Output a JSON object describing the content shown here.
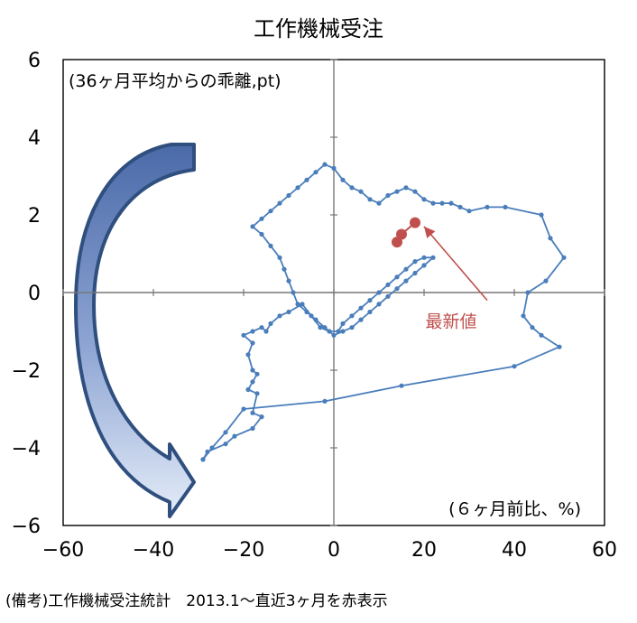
{
  "chart_data": {
    "type": "scatter",
    "title": "工作機械受注",
    "annotation_units": "(36ヶ月平均からの乖離,pt)",
    "annotation_xlabel": "(６ヶ月前比、%)",
    "latest_label": "最新値",
    "xlim": [
      -60,
      60
    ],
    "ylim": [
      -6,
      6
    ],
    "x_ticks": [
      -60,
      -40,
      -20,
      0,
      20,
      40,
      60
    ],
    "y_ticks": [
      6,
      4,
      2,
      0,
      -2,
      -4,
      -6
    ],
    "x_tick_labels": [
      "−60",
      "−40",
      "−20",
      "0",
      "20",
      "40",
      "60"
    ],
    "y_tick_labels": [
      "6",
      "4",
      "2",
      "0",
      "−2",
      "−4",
      "−6"
    ],
    "grid": false,
    "colors": {
      "series": "#4a7ebb",
      "latest": "#c0504d",
      "arrow_fill": "#7a90c0",
      "arrow_stroke": "#2f4f7f"
    },
    "series": [
      {
        "x": [
          -29,
          -28,
          -24,
          -22,
          -18,
          -16,
          -18,
          -17,
          -19,
          -18,
          -17,
          -18,
          -19,
          -18,
          -20,
          -18,
          -16,
          -15,
          -14,
          -12,
          -10,
          -7,
          -5,
          -3,
          -1,
          1,
          2,
          4,
          6,
          8,
          10,
          12,
          14,
          16,
          18,
          20,
          22,
          20,
          18,
          16,
          14,
          12,
          10,
          8,
          6,
          4,
          2,
          0,
          -2,
          -4,
          -6,
          -8,
          -9,
          -10,
          -11,
          -12,
          -14,
          -16,
          -18,
          -16,
          -14,
          -12,
          -10,
          -8,
          -6,
          -4,
          -2,
          0,
          2,
          4,
          6,
          8,
          10,
          12,
          14,
          16,
          18,
          20,
          22,
          24,
          26,
          28,
          30,
          34,
          38,
          46,
          48,
          51,
          47,
          43,
          42,
          44,
          46,
          50,
          40,
          15,
          -2,
          -20,
          -24,
          -27,
          -29
        ],
        "y": [
          -4.3,
          -4.1,
          -3.9,
          -3.7,
          -3.5,
          -3.2,
          -3.1,
          -2.6,
          -2.5,
          -2.3,
          -2.1,
          -2.0,
          -1.6,
          -1.3,
          -1.1,
          -1.0,
          -0.9,
          -1.0,
          -0.8,
          -0.6,
          -0.5,
          -0.3,
          -0.6,
          -0.9,
          -1.0,
          -1.0,
          -0.8,
          -0.6,
          -0.4,
          -0.2,
          0.0,
          0.2,
          0.4,
          0.6,
          0.8,
          0.9,
          0.9,
          0.7,
          0.5,
          0.3,
          0.1,
          -0.1,
          -0.3,
          -0.5,
          -0.7,
          -0.9,
          -1.0,
          -1.1,
          -0.9,
          -0.7,
          -0.5,
          -0.3,
          0.0,
          0.3,
          0.6,
          0.9,
          1.2,
          1.5,
          1.7,
          1.9,
          2.1,
          2.3,
          2.5,
          2.7,
          2.9,
          3.1,
          3.3,
          3.2,
          2.9,
          2.7,
          2.6,
          2.4,
          2.3,
          2.5,
          2.6,
          2.7,
          2.6,
          2.4,
          2.3,
          2.3,
          2.3,
          2.2,
          2.1,
          2.2,
          2.2,
          2.0,
          1.4,
          0.9,
          0.3,
          0.0,
          -0.6,
          -0.9,
          -1.1,
          -1.4,
          -1.9,
          -2.4,
          -2.8,
          -3.0,
          -3.6,
          -4.0,
          -4.3
        ]
      },
      {
        "name": "最新値",
        "x": [
          14,
          15,
          18
        ],
        "y": [
          1.3,
          1.5,
          1.8
        ]
      }
    ],
    "latest_arrow": {
      "from": [
        34,
        -0.2
      ],
      "to": [
        20,
        1.7
      ]
    }
  },
  "footnote": "(備考)工作機械受注統計　2013.1〜直近3ヶ月を赤表示"
}
